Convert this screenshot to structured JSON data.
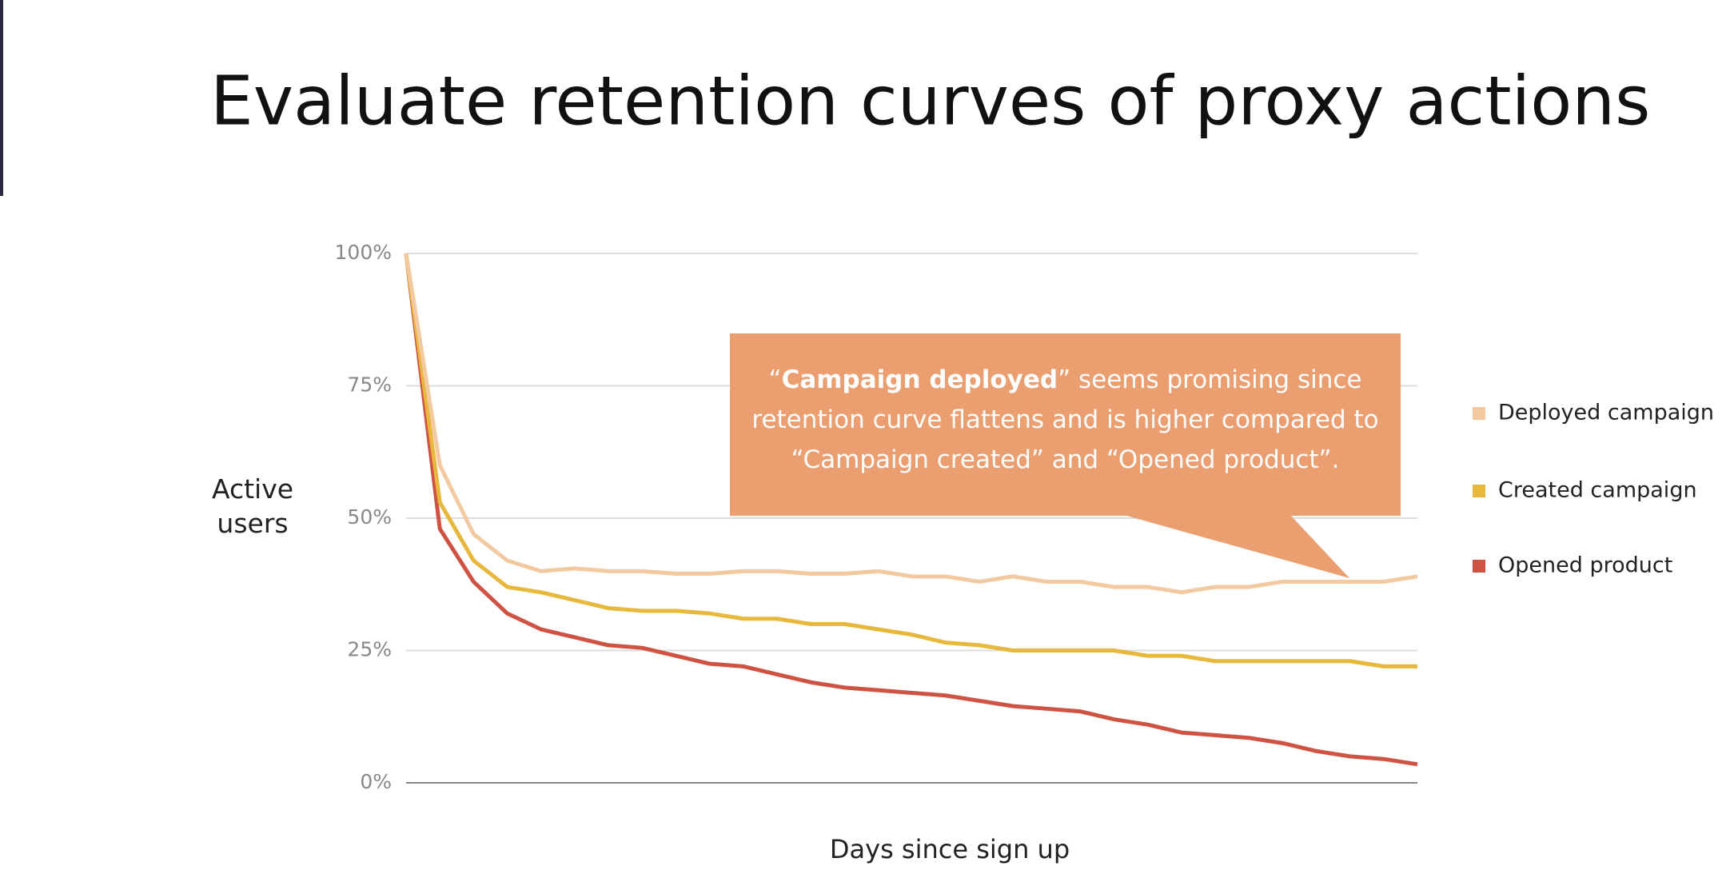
{
  "chart_data": {
    "type": "line",
    "title": "Evaluate retention curves of proxy actions",
    "xlabel": "Days since sign up",
    "ylabel": "Active users",
    "categories": [
      null,
      null,
      null,
      null,
      null,
      null,
      null,
      null,
      null,
      null,
      null,
      null,
      null,
      null,
      null,
      null,
      null,
      null,
      null,
      null,
      null,
      null,
      null,
      null,
      null,
      null,
      null,
      null,
      null,
      null,
      null
    ],
    "series": [
      {
        "name": "Deployed campaign",
        "color": "#f3c9a0",
        "values": [
          100,
          60,
          47,
          42,
          40,
          40.5,
          40,
          40,
          39.5,
          39.5,
          40,
          40,
          39.5,
          39.5,
          40,
          39,
          39,
          38,
          39,
          38,
          38,
          37,
          37,
          36,
          37,
          37,
          38,
          38,
          38,
          38,
          39
        ]
      },
      {
        "name": "Created campaign",
        "color": "#e8b83c",
        "values": [
          100,
          53,
          42,
          37,
          36,
          34.5,
          33,
          32.5,
          32.5,
          32,
          31,
          31,
          30,
          30,
          29,
          28,
          26.5,
          26,
          25,
          25,
          25,
          25,
          24,
          24,
          23,
          23,
          23,
          23,
          23,
          22,
          22
        ]
      },
      {
        "name": "Opened product",
        "color": "#cf5242",
        "values": [
          100,
          48,
          38,
          32,
          29,
          27.5,
          26,
          25.5,
          24,
          22.5,
          22,
          20.5,
          19,
          18,
          17.5,
          17,
          16.5,
          15.5,
          14.5,
          14,
          13.5,
          12,
          11,
          9.5,
          9,
          8.5,
          7.5,
          6,
          5,
          4.5,
          3.5
        ]
      }
    ],
    "ylim": [
      0,
      100
    ],
    "yticks": [
      {
        "value": 0,
        "label": "0%"
      },
      {
        "value": 25,
        "label": "25%"
      },
      {
        "value": 50,
        "label": "50%"
      },
      {
        "value": 75,
        "label": "75%"
      },
      {
        "value": 100,
        "label": "100%"
      }
    ],
    "grid": true,
    "legend": "right",
    "annotation": {
      "open_quote": "“",
      "bold": "Campaign deployed",
      "text": "” seems promising since retention curve flattens and is higher compared to “Campaign created” and “Opened product”.",
      "color": "#eb9e6f"
    }
  }
}
